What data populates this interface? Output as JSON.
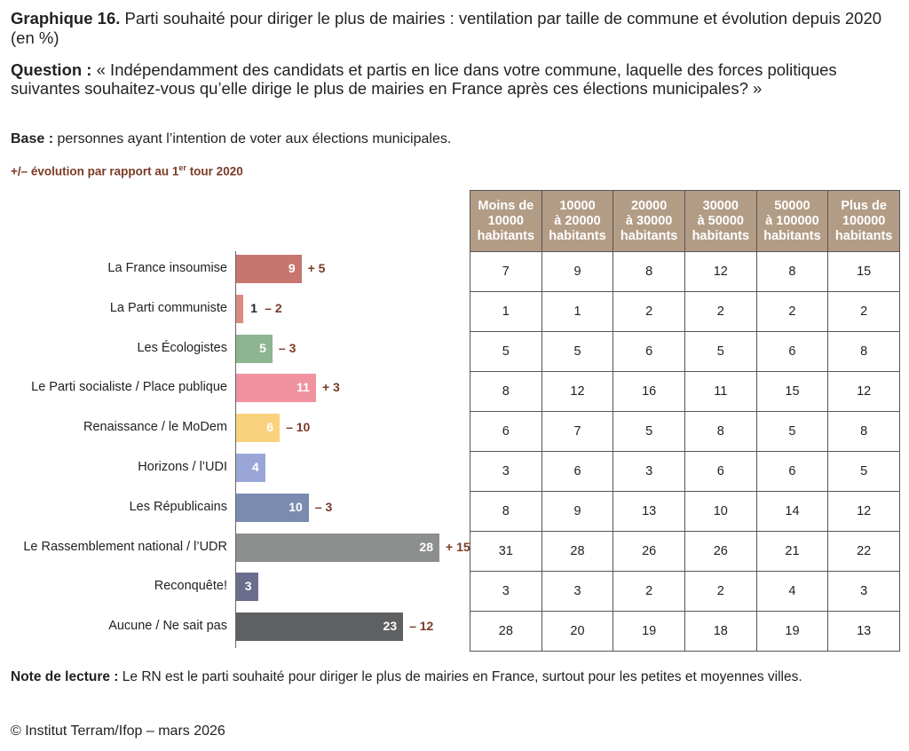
{
  "title": {
    "label": "Graphique 16.",
    "text": "Parti souhaité pour diriger le plus de mairies : ventilation par taille de commune et évolution depuis 2020 (en %)"
  },
  "question": {
    "label": "Question :",
    "text": "« Indépendamment des candidats et partis en lice dans votre commune, laquelle des forces politiques suivantes souhaitez-vous qu’elle dirige le plus de mairies en France après ces élections municipales? »"
  },
  "base": {
    "label": "Base :",
    "text": "personnes ayant l’intention de voter aux élections municipales."
  },
  "evolution_legend": {
    "pre": "+/– évolution par rapport au 1",
    "sup": "er",
    "post": " tour 2020"
  },
  "chart_data": {
    "type": "bar",
    "orientation": "horizontal",
    "categories": [
      "La France insoumise",
      "La Parti communiste",
      "Les Écologistes",
      "Le Parti socialiste / Place publique",
      "Renaissance / le MoDem",
      "Horizons / l’UDI",
      "Les Républicains",
      "Le Rassemblement national / l’UDR",
      "Reconquête!",
      "Aucune / Ne sait pas"
    ],
    "values": [
      9,
      1,
      5,
      11,
      6,
      4,
      10,
      28,
      3,
      23
    ],
    "evolution": [
      "+ 5",
      "– 2",
      "– 3",
      "+ 3",
      "– 10",
      "",
      "– 3",
      "+ 15",
      "",
      "– 12"
    ],
    "colors": [
      "#c8756f",
      "#dc8a7f",
      "#8db58f",
      "#f0929f",
      "#fad27e",
      "#9aa6d8",
      "#7a8bb0",
      "#8c8f8e",
      "#6a6e8c",
      "#5f6062"
    ],
    "xlim": [
      0,
      28
    ]
  },
  "table": {
    "headers": [
      [
        "Moins de",
        "10000",
        "habitants"
      ],
      [
        "10000",
        "à 20000",
        "habitants"
      ],
      [
        "20000",
        "à 30000",
        "habitants"
      ],
      [
        "30000",
        "à 50000",
        "habitants"
      ],
      [
        "50000",
        "à 100000",
        "habitants"
      ],
      [
        "Plus de",
        "100000",
        "habitants"
      ]
    ],
    "rows": [
      [
        "7",
        "9",
        "8",
        "12",
        "8",
        "15"
      ],
      [
        "1",
        "1",
        "2",
        "2",
        "2",
        "2"
      ],
      [
        "5",
        "5",
        "6",
        "5",
        "6",
        "8"
      ],
      [
        "8",
        "12",
        "16",
        "11",
        "15",
        "12"
      ],
      [
        "6",
        "7",
        "5",
        "8",
        "5",
        "8"
      ],
      [
        "3",
        "6",
        "3",
        "6",
        "6",
        "5"
      ],
      [
        "8",
        "9",
        "13",
        "10",
        "14",
        "12"
      ],
      [
        "31",
        "28",
        "26",
        "26",
        "21",
        "22"
      ],
      [
        "3",
        "3",
        "2",
        "2",
        "4",
        "3"
      ],
      [
        "28",
        "20",
        "19",
        "18",
        "19",
        "13"
      ]
    ]
  },
  "note": {
    "label": "Note de lecture :",
    "text": "Le RN est le parti souhaité pour diriger le plus de mairies en France, surtout pour les petites et moyennes villes."
  },
  "copyright": "© Institut Terram/Ifop – mars 2026"
}
